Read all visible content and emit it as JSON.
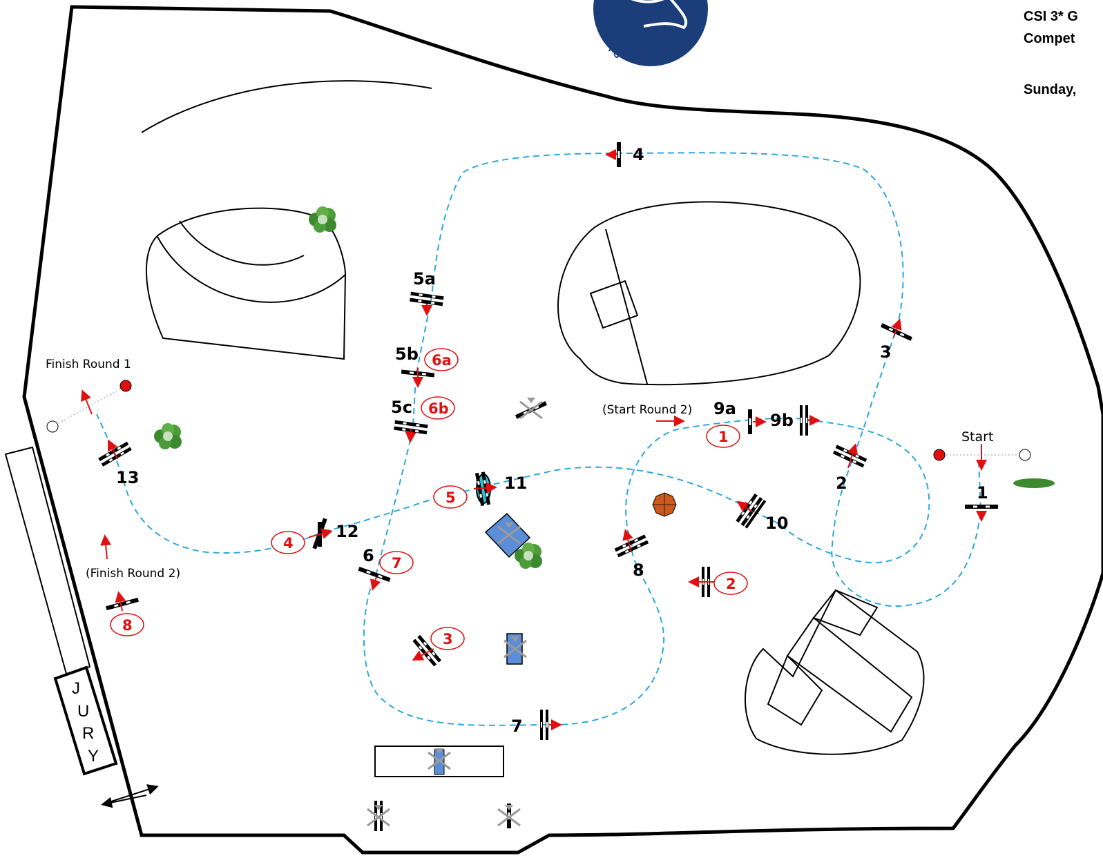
{
  "header": {
    "line1": "CSI 3* G",
    "line2": "Compet",
    "line3": "Sunday,"
  },
  "logo": {
    "text": "AREZZO EQUES"
  },
  "jury": {
    "letters": [
      "J",
      "U",
      "R",
      "Y"
    ]
  },
  "labels": {
    "start": "Start",
    "finish_round_1": "Finish Round 1",
    "finish_round_2": "(Finish Round 2)",
    "start_round_2": "(Start Round 2)"
  },
  "round1_fences": [
    "1",
    "2",
    "3",
    "4",
    "5a",
    "5b",
    "5c",
    "6",
    "7",
    "8",
    "9a",
    "9b",
    "10",
    "11",
    "12",
    "13"
  ],
  "round2_fences": [
    "1",
    "2",
    "3",
    "4",
    "5",
    "6a",
    "6b",
    "7",
    "8"
  ],
  "colors": {
    "course_path": "#29a8e0",
    "round2": "#e01010",
    "start_marker": "#e01010",
    "logo": "#1b3d7a",
    "water": "#5b8ed6",
    "tree": "#3d8a2e"
  },
  "icons": [
    "start-flag-icon",
    "finish-flag-icon",
    "fence-icon",
    "tree-icon",
    "umbrella-icon",
    "direction-arrow-icon"
  ]
}
